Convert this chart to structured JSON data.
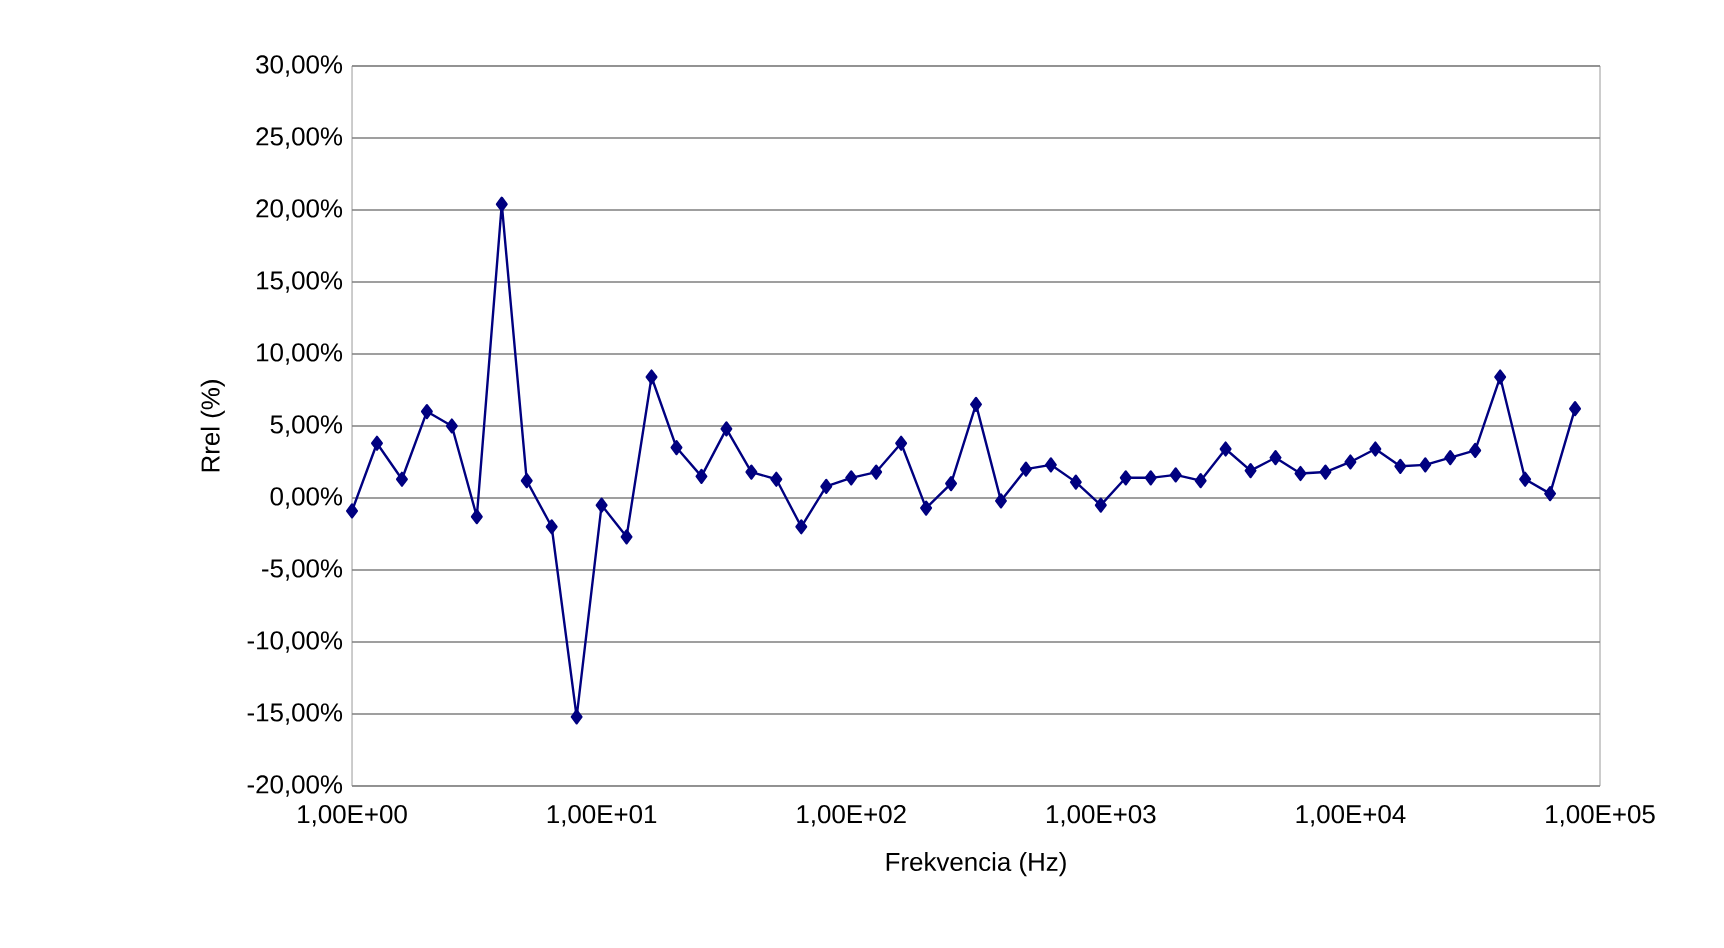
{
  "chart_data": {
    "type": "line",
    "xlabel": "Frekvencia (Hz)",
    "ylabel": "Rrel (%)",
    "grid": "y",
    "marker": "diamond",
    "line_style": "solid",
    "ylim": [
      -20,
      30
    ],
    "yticks": [
      {
        "value": -20,
        "label": "-20,00%"
      },
      {
        "value": -15,
        "label": "-15,00%"
      },
      {
        "value": -10,
        "label": "-10,00%"
      },
      {
        "value": -5,
        "label": "-5,00%"
      },
      {
        "value": 0,
        "label": "0,00%"
      },
      {
        "value": 5,
        "label": "5,00%"
      },
      {
        "value": 10,
        "label": "10,00%"
      },
      {
        "value": 15,
        "label": "15,00%"
      },
      {
        "value": 20,
        "label": "20,00%"
      },
      {
        "value": 25,
        "label": "25,00%"
      },
      {
        "value": 30,
        "label": "30,00%"
      }
    ],
    "categories": [
      "1,00E+00",
      null,
      null,
      null,
      null,
      null,
      null,
      null,
      null,
      null,
      "1,00E+01",
      null,
      null,
      null,
      null,
      null,
      null,
      null,
      null,
      null,
      "1,00E+02",
      null,
      null,
      null,
      null,
      null,
      null,
      null,
      null,
      null,
      "1,00E+03",
      null,
      null,
      null,
      null,
      null,
      null,
      null,
      null,
      null,
      "1,00E+04",
      null,
      null,
      null,
      null,
      null,
      null,
      null,
      null,
      null,
      "1,00E+05"
    ],
    "series": [
      {
        "color": "#000080",
        "values": [
          -0.9,
          3.8,
          1.3,
          6.0,
          5.0,
          -1.3,
          20.4,
          1.2,
          -2.0,
          -15.2,
          -0.5,
          -2.7,
          8.4,
          3.5,
          1.5,
          4.8,
          1.8,
          1.3,
          -2.0,
          0.8,
          1.4,
          1.8,
          3.8,
          -0.7,
          1.0,
          6.5,
          -0.2,
          2.0,
          2.3,
          1.1,
          -0.5,
          1.4,
          1.4,
          1.6,
          1.2,
          3.4,
          1.9,
          2.8,
          1.7,
          1.8,
          2.5,
          3.4,
          2.2,
          2.3,
          2.8,
          3.3,
          8.4,
          1.3,
          0.3,
          6.2,
          null
        ]
      }
    ]
  }
}
